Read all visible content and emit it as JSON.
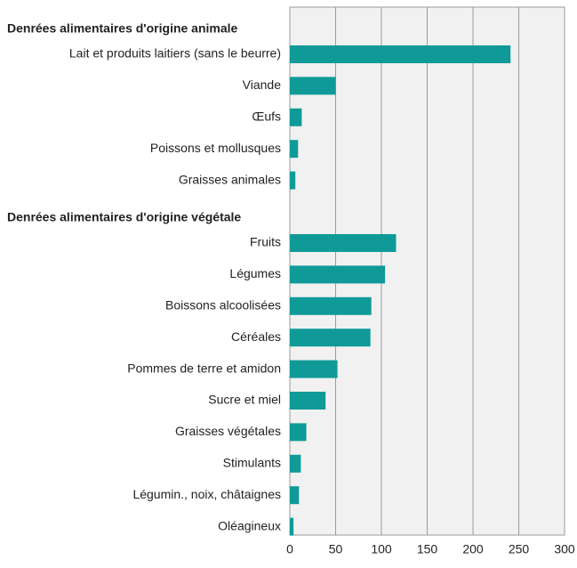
{
  "chart_data": {
    "type": "bar",
    "orientation": "horizontal",
    "color": "#0f9a98",
    "groups": [
      {
        "name": "Denrées alimentaires d'origine animale",
        "categories": [
          "Lait et produits laitiers (sans le beurre)",
          "Viande",
          "Œufs",
          "Poissons et mollusques",
          "Graisses animales"
        ],
        "values": [
          241,
          50,
          13,
          9,
          6
        ]
      },
      {
        "name": "Denrées alimentaires d'origine végétale",
        "categories": [
          "Fruits",
          "Légumes",
          "Boissons alcoolisées",
          "Céréales",
          "Pommes de terre et amidon",
          "Sucre et miel",
          "Graisses végétales",
          "Stimulants",
          "Légumin., noix, châtaignes",
          "Oléagineux"
        ],
        "values": [
          116,
          104,
          89,
          88,
          52,
          39,
          18,
          12,
          10,
          4
        ]
      }
    ],
    "xlim": [
      0,
      300
    ],
    "xticks": [
      0,
      50,
      100,
      150,
      200,
      250,
      300
    ],
    "grid": true
  }
}
